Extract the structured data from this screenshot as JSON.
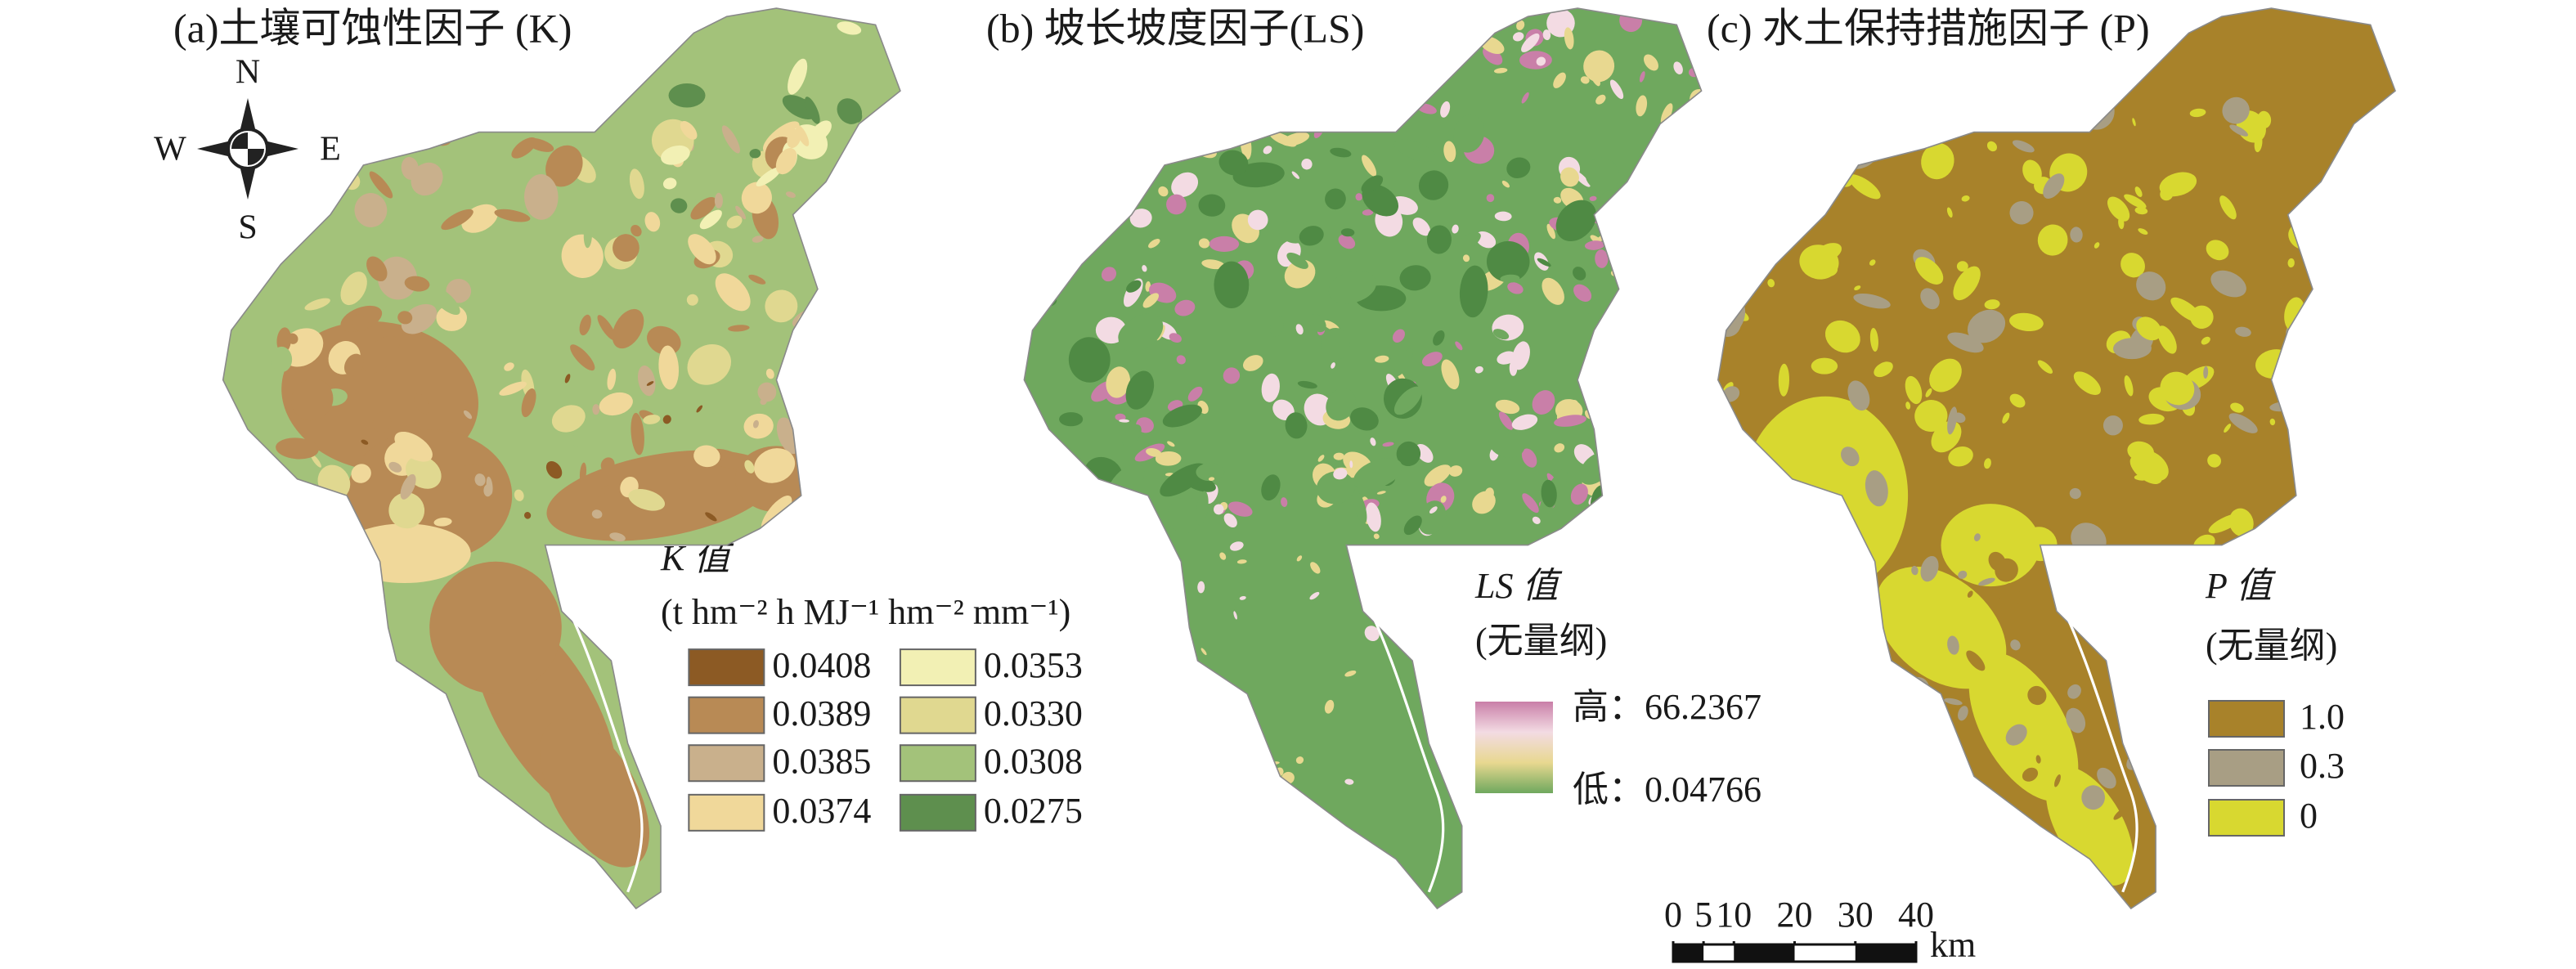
{
  "panels": [
    {
      "title": "(a)土壤可蚀性因子 (K)",
      "legend": {
        "title": "K 值",
        "unit": "(t hm⁻² h MJ⁻¹ hm⁻² mm⁻¹)",
        "items": [
          {
            "label": "0.0408",
            "color": "#8c5a24"
          },
          {
            "label": "0.0389",
            "color": "#b88a55"
          },
          {
            "label": "0.0385",
            "color": "#c9b08c"
          },
          {
            "label": "0.0374",
            "color": "#f0d89a"
          },
          {
            "label": "0.0353",
            "color": "#f2f0b4"
          },
          {
            "label": "0.0330",
            "color": "#e0d890"
          },
          {
            "label": "0.0308",
            "color": "#a3c27a"
          },
          {
            "label": "0.0275",
            "color": "#5e8f4e"
          }
        ]
      }
    },
    {
      "title": "(b) 坡长坡度因子(LS)",
      "legend": {
        "title": "LS 值",
        "unit": "(无量纲)",
        "high": "高：66.2367",
        "low": "低：0.04766",
        "gradient": [
          "#c97fa8",
          "#f3dbe3",
          "#e8d890",
          "#6fa85e"
        ]
      }
    },
    {
      "title": "(c) 水土保持措施因子 (P)",
      "legend": {
        "title": "P 值",
        "unit": "(无量纲)",
        "items": [
          {
            "label": "1.0",
            "color": "#a8822a"
          },
          {
            "label": "0.3",
            "color": "#a89e84"
          },
          {
            "label": "0",
            "color": "#d8d830"
          }
        ]
      }
    }
  ],
  "compass": {
    "n": "N",
    "s": "S",
    "w": "W",
    "e": "E"
  },
  "scale_bar": {
    "ticks": [
      0,
      5,
      10,
      20,
      30,
      40
    ],
    "unit": "km"
  }
}
